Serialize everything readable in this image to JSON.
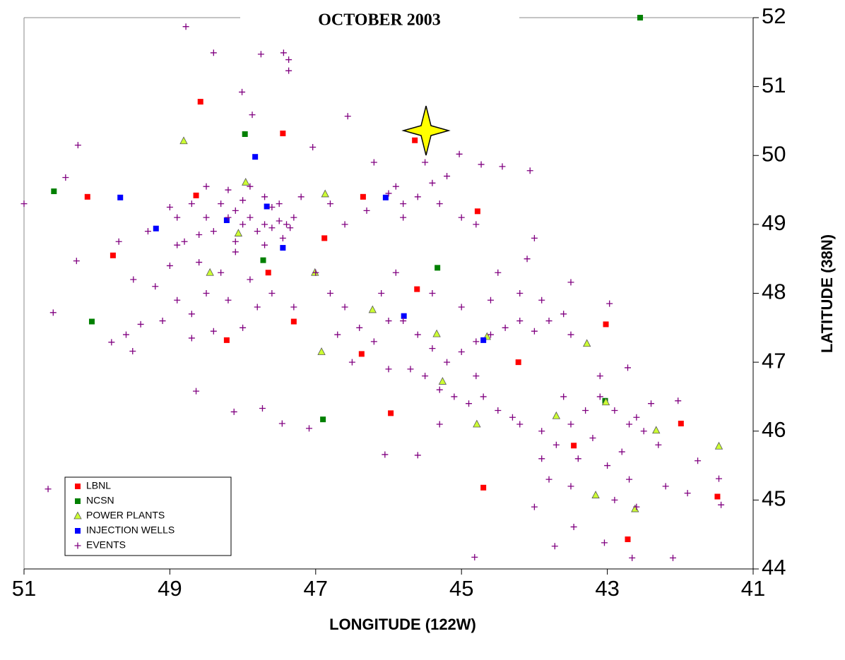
{
  "chart_data": {
    "type": "scatter",
    "title": "OCTOBER 2003",
    "xlabel": "LONGITUDE (122W)",
    "ylabel": "LATITUDE (38N)",
    "xlim": [
      51,
      41
    ],
    "ylim": [
      44,
      52
    ],
    "xticks": [
      51,
      49,
      47,
      45,
      43,
      41
    ],
    "yticks": [
      44,
      45,
      46,
      47,
      48,
      49,
      50,
      51,
      52
    ],
    "legend": "lower left",
    "series": [
      {
        "name": "LBNL",
        "color": "#ff0000",
        "marker": "square",
        "x": [
          48.58,
          47.45,
          45.64,
          50.13,
          48.64,
          46.35,
          44.78,
          49.78,
          46.88,
          47.65,
          45.61,
          47.3,
          48.22,
          46.37,
          43.02,
          44.22,
          45.97,
          41.99,
          43.46,
          44.7,
          42.72,
          41.49
        ],
        "y": [
          50.78,
          50.32,
          50.22,
          49.4,
          49.42,
          49.4,
          49.19,
          48.55,
          48.8,
          48.3,
          48.06,
          47.59,
          47.32,
          47.12,
          47.55,
          47.0,
          46.26,
          46.11,
          45.79,
          45.18,
          44.43,
          45.05
        ]
      },
      {
        "name": "NCSN",
        "color": "#008000",
        "marker": "square",
        "x": [
          42.55,
          47.97,
          50.59,
          47.72,
          45.33,
          50.07,
          46.9,
          43.03
        ],
        "y": [
          52.0,
          50.31,
          49.48,
          48.48,
          48.37,
          47.59,
          46.17,
          46.44
        ]
      },
      {
        "name": "POWER PLANTS",
        "color": "#ccff33",
        "marker": "triangle",
        "x": [
          48.81,
          47.96,
          46.87,
          48.06,
          48.45,
          47.01,
          46.22,
          46.92,
          45.34,
          44.65,
          43.28,
          45.26,
          44.79,
          43.7,
          42.33,
          41.47,
          43.16,
          42.62,
          43.02
        ],
        "y": [
          50.21,
          49.61,
          49.44,
          48.87,
          48.3,
          48.3,
          47.76,
          47.15,
          47.41,
          47.37,
          47.27,
          46.72,
          46.1,
          46.22,
          46.01,
          45.78,
          45.07,
          44.87,
          46.42
        ]
      },
      {
        "name": "INJECTION WELLS",
        "color": "#0000ff",
        "marker": "square",
        "x": [
          47.83,
          49.68,
          49.19,
          48.22,
          47.67,
          47.45,
          46.04,
          45.79,
          44.7
        ],
        "y": [
          49.98,
          49.39,
          48.94,
          49.06,
          49.26,
          48.66,
          49.39,
          47.67,
          47.32
        ]
      },
      {
        "name": "EVENTS",
        "color": "#800080",
        "marker": "plus",
        "x": [
          51.0,
          48.78,
          48.4,
          47.75,
          47.44,
          47.37,
          47.37,
          48.01,
          47.87,
          46.56,
          50.26,
          50.43,
          50.67,
          50.6,
          50.28,
          49.8,
          49.51,
          48.64,
          48.12,
          47.73,
          47.46,
          47.09,
          46.05,
          45.6,
          44.82,
          43.72,
          43.46,
          43.04,
          42.66,
          42.1,
          41.47,
          41.44,
          41.76,
          42.03,
          42.72,
          42.97,
          43.5,
          44.06,
          44.44,
          44.73,
          45.03,
          47.04,
          48.1,
          47.9,
          47.7,
          47.6,
          47.5,
          47.4,
          47.3,
          47.35,
          47.8,
          48.0,
          48.2,
          48.4,
          48.6,
          48.5,
          48.3,
          48.0,
          47.7,
          47.9,
          48.2,
          48.5,
          47.6,
          47.5,
          47.45,
          47.7,
          48.1,
          48.7,
          48.9,
          49.0,
          48.8,
          47.2,
          49.0,
          49.2,
          48.9,
          48.7,
          48.5,
          48.3,
          48.1,
          47.9,
          47.8,
          48.0,
          48.4,
          48.7,
          49.4,
          49.6,
          49.5,
          48.6,
          47.6,
          47.3,
          48.2,
          49.1,
          48.9,
          49.3,
          49.7,
          46.0,
          45.8,
          45.6,
          45.4,
          45.2,
          45.3,
          45.9,
          46.3,
          46.6,
          46.8,
          45.0,
          44.8,
          45.5,
          46.2,
          45.8,
          47.0,
          46.8,
          46.6,
          46.4,
          46.2,
          46.0,
          45.8,
          45.6,
          45.4,
          45.2,
          45.0,
          44.8,
          44.6,
          44.4,
          44.2,
          44.0,
          43.8,
          43.6,
          43.5,
          45.5,
          45.3,
          45.1,
          44.9,
          44.7,
          44.5,
          44.3,
          45.7,
          46.0,
          46.5,
          46.7,
          46.1,
          45.9,
          45.4,
          45.0,
          44.6,
          44.2,
          43.9,
          44.1,
          44.5,
          44.0,
          44.8,
          45.3,
          43.9,
          43.7,
          43.5,
          43.3,
          43.1,
          42.9,
          42.7,
          42.5,
          42.3,
          43.6,
          43.4,
          43.2,
          43.0,
          42.8,
          42.6,
          42.4,
          43.8,
          43.5,
          42.9,
          42.7,
          44.0,
          43.9,
          44.2,
          43.1,
          42.2,
          41.9,
          42.6
        ],
        "y": [
          49.3,
          51.87,
          51.49,
          51.47,
          51.49,
          51.39,
          51.23,
          50.92,
          50.59,
          50.57,
          50.15,
          49.68,
          45.16,
          47.72,
          48.47,
          47.29,
          47.16,
          46.58,
          46.28,
          46.33,
          46.11,
          46.04,
          45.66,
          45.65,
          44.17,
          44.33,
          44.61,
          44.38,
          44.16,
          44.16,
          45.31,
          44.93,
          45.57,
          46.44,
          46.92,
          47.85,
          48.16,
          49.78,
          49.84,
          49.87,
          50.02,
          50.12,
          49.2,
          49.1,
          49.0,
          48.95,
          49.05,
          49.0,
          49.1,
          48.95,
          48.9,
          49.0,
          49.1,
          48.9,
          48.85,
          49.1,
          49.3,
          49.35,
          49.4,
          49.55,
          49.5,
          49.55,
          49.25,
          49.3,
          48.8,
          48.7,
          48.75,
          49.3,
          49.1,
          49.25,
          48.75,
          49.4,
          48.4,
          48.1,
          47.9,
          47.7,
          48.0,
          48.3,
          48.6,
          48.2,
          47.8,
          47.5,
          47.45,
          47.35,
          47.55,
          47.4,
          48.2,
          48.45,
          48.0,
          47.8,
          47.9,
          47.6,
          48.7,
          48.9,
          48.75,
          49.45,
          49.3,
          49.4,
          49.6,
          49.7,
          49.3,
          49.55,
          49.2,
          49.0,
          49.3,
          49.1,
          49.0,
          49.9,
          49.9,
          49.1,
          48.3,
          48.0,
          47.8,
          47.5,
          47.3,
          47.6,
          47.6,
          47.4,
          47.2,
          47.0,
          47.15,
          47.3,
          47.4,
          47.5,
          47.6,
          47.45,
          47.6,
          47.7,
          47.4,
          46.8,
          46.6,
          46.5,
          46.4,
          46.5,
          46.3,
          46.2,
          46.9,
          46.9,
          47.0,
          47.4,
          48.0,
          48.3,
          48.0,
          47.8,
          47.9,
          48.0,
          47.9,
          48.5,
          48.3,
          48.8,
          46.8,
          46.1,
          46.0,
          45.8,
          46.1,
          46.3,
          46.5,
          46.3,
          46.1,
          46.0,
          45.8,
          46.5,
          45.6,
          45.9,
          45.5,
          45.7,
          46.2,
          46.4,
          45.3,
          45.2,
          45.0,
          45.3,
          44.9,
          45.6,
          46.1,
          46.8,
          45.2,
          45.1,
          44.9
        ]
      }
    ]
  }
}
